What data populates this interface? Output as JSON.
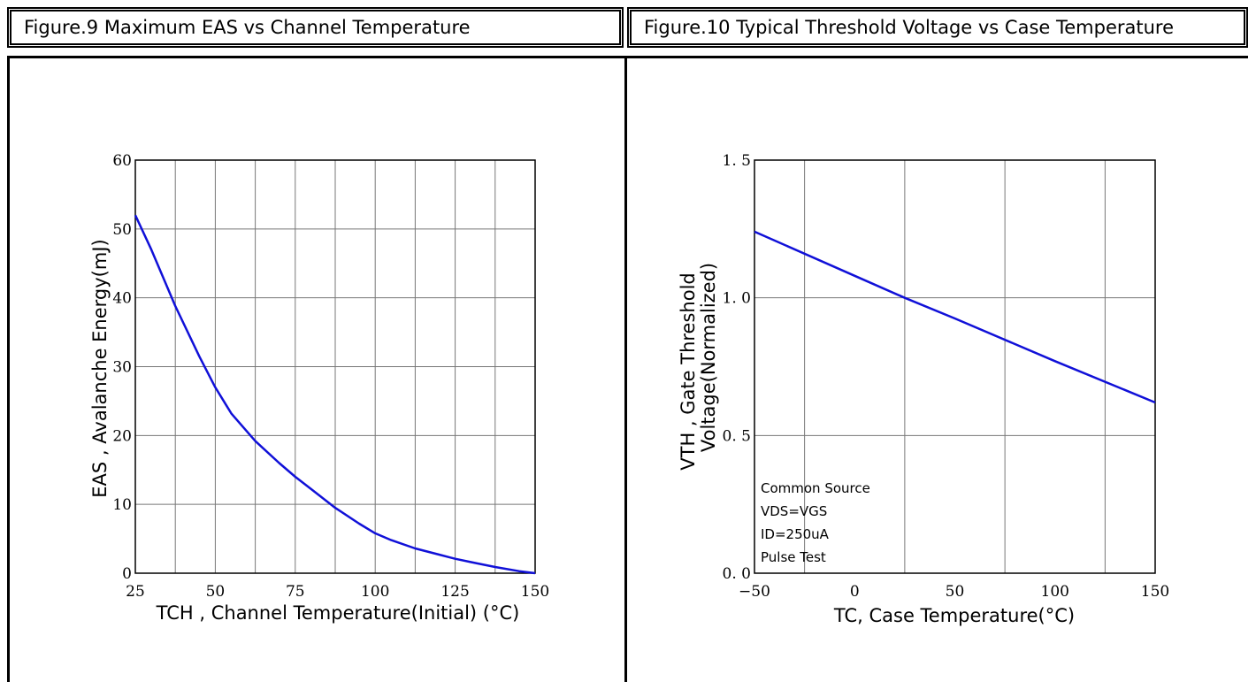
{
  "chart_data": [
    {
      "type": "line",
      "title": "Figure.9 Maximum EAS vs Channel Temperature",
      "xlabel": "TCH , Channel Temperature(Initial) (°C)",
      "ylabel": "EAS , Avalanche Energy(mJ)",
      "xlim": [
        25,
        150
      ],
      "ylim": [
        0,
        60
      ],
      "x_ticks": [
        "25",
        "50",
        "75",
        "100",
        "125",
        "150"
      ],
      "y_ticks": [
        "0",
        "10",
        "20",
        "30",
        "40",
        "50",
        "60"
      ],
      "grid": true,
      "line_color": "#1010d8",
      "series": [
        {
          "x": [
            25,
            30,
            37.5,
            45,
            50,
            55,
            62.5,
            70,
            75,
            80,
            87.5,
            95,
            100,
            105,
            112.5,
            120,
            125,
            130,
            137.5,
            145,
            150
          ],
          "y": [
            52,
            47,
            38.8,
            31.5,
            27,
            23.2,
            19.2,
            16,
            14,
            12.2,
            9.5,
            7.2,
            5.8,
            4.8,
            3.6,
            2.7,
            2.1,
            1.6,
            0.9,
            0.3,
            0
          ]
        }
      ]
    },
    {
      "type": "line",
      "title": "Figure.10 Typical Threshold Voltage vs Case Temperature",
      "xlabel": "TC, Case Temperature(°C)",
      "ylabel_line1": "VTH , Gate Threshold",
      "ylabel_line2": "Voltage(Normalized)",
      "xlim": [
        -50,
        150
      ],
      "ylim": [
        0,
        1.5
      ],
      "x_ticks": [
        "−50",
        "0",
        "50",
        "100",
        "150"
      ],
      "y_ticks": [
        "0. 0",
        "0. 5",
        "1. 0",
        "1. 5"
      ],
      "grid": true,
      "line_color": "#1010d8",
      "annotations": [
        "Common Source",
        "VDS=VGS",
        "ID=250uA",
        "Pulse Test"
      ],
      "series": [
        {
          "x": [
            -50,
            0,
            25,
            50,
            100,
            150
          ],
          "y": [
            1.24,
            1.08,
            1.0,
            0.925,
            0.77,
            0.62
          ]
        }
      ]
    }
  ]
}
